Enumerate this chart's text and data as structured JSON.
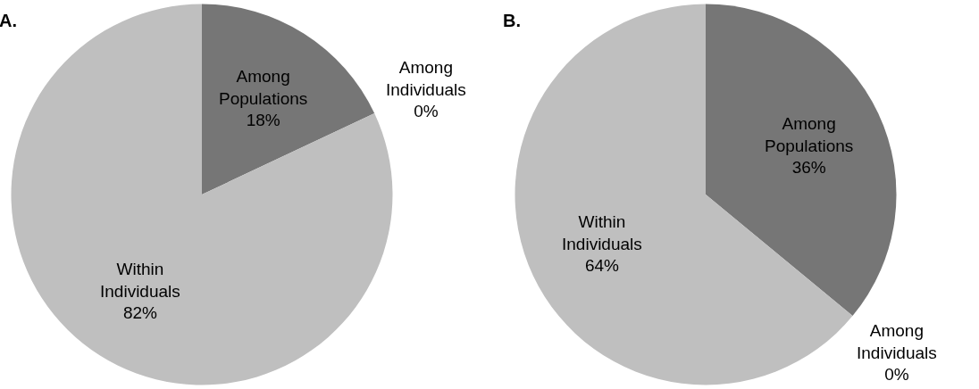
{
  "chart_data": [
    {
      "type": "pie",
      "title": "A.",
      "categories": [
        "Among Populations",
        "Among Individuals",
        "Within Individuals"
      ],
      "values": [
        18,
        0,
        82
      ],
      "colors": [
        "#767676",
        "#9a9a9a",
        "#bfbfbf"
      ],
      "value_labels": [
        "18%",
        "0%",
        "82%"
      ]
    },
    {
      "type": "pie",
      "title": "B.",
      "categories": [
        "Among Populations",
        "Among Individuals",
        "Within Individuals"
      ],
      "values": [
        36,
        0,
        64
      ],
      "colors": [
        "#767676",
        "#9a9a9a",
        "#bfbfbf"
      ],
      "value_labels": [
        "36%",
        "0%",
        "64%"
      ]
    }
  ]
}
